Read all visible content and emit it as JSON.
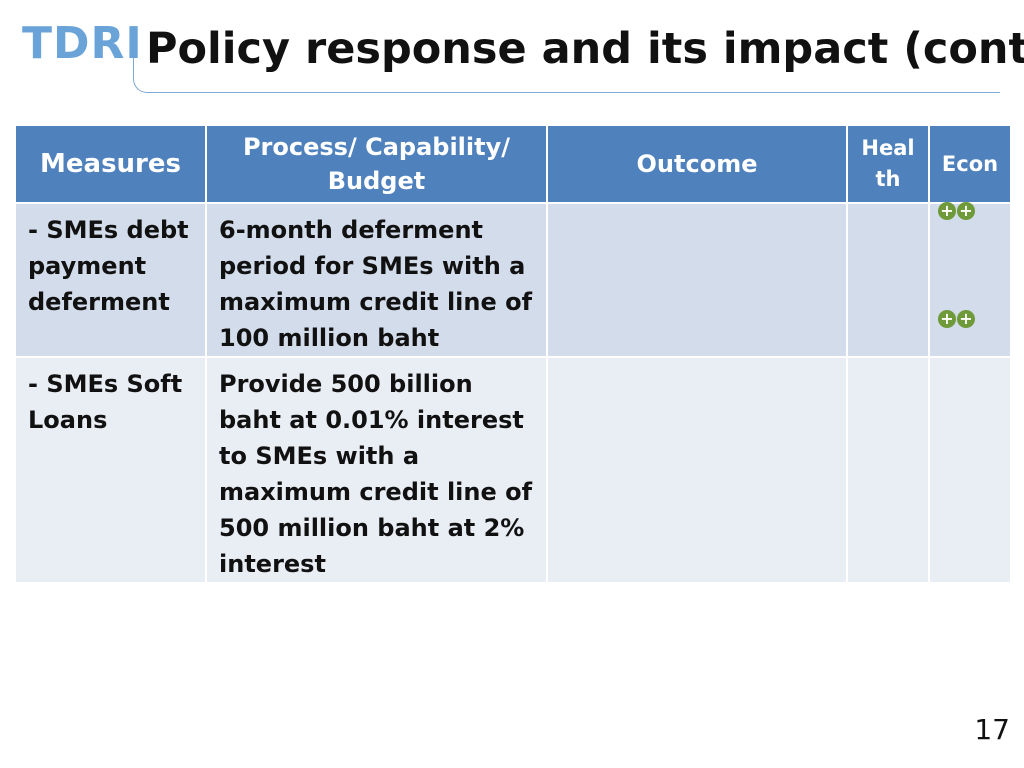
{
  "logo": "TDRI",
  "title": "Policy response and its impact (cont.)",
  "table": {
    "headers": {
      "measures": "Measures",
      "process": "Process/ Capability/ Budget",
      "outcome": "Outcome",
      "health": "Heal th",
      "econ": "Econ"
    },
    "rows": [
      {
        "measure": "- SMEs debt payment deferment",
        "process": "6-month deferment period for SMEs with a maximum credit line of 100 million baht",
        "outcome": "",
        "health": "",
        "econ_marks": [
          "++",
          "++"
        ]
      },
      {
        "measure": "- SMEs Soft Loans",
        "process": "Provide 500 billion baht at 0.01% interest to SMEs with a maximum credit line of 500 million baht at 2% interest",
        "outcome": "",
        "health": "",
        "econ_marks": []
      }
    ]
  },
  "page_number": "17",
  "colors": {
    "header_bg": "#4f81bd",
    "row1_bg": "#d3dcea",
    "row2_bg": "#e9edf4",
    "plus_badge": "#6f9a3a",
    "logo": "#6aa3d8"
  },
  "icons": {
    "econ_impact": "plus-circle-icon"
  }
}
